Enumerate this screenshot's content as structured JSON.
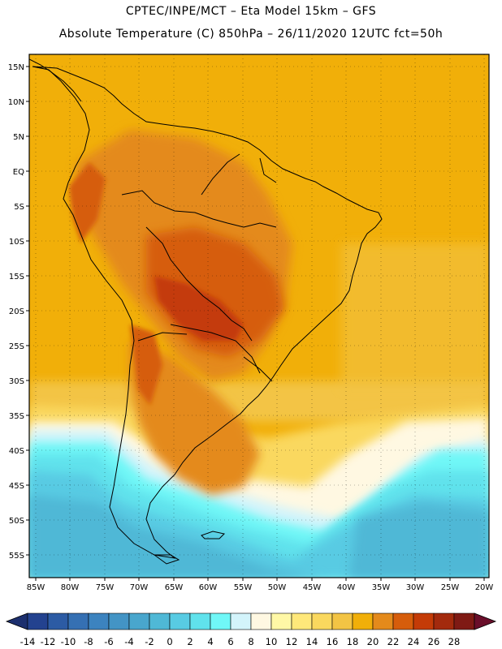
{
  "header": {
    "line1": "CPTEC/INPE/MCT –  Eta Model 15km – GFS",
    "line2": "Absolute Temperature (C) 850hPa – 26/11/2020 12UTC fct=50h"
  },
  "map": {
    "lat_labels": [
      "15N",
      "10N",
      "5N",
      "EQ",
      "5S",
      "10S",
      "15S",
      "20S",
      "25S",
      "30S",
      "35S",
      "40S",
      "45S",
      "50S",
      "55S"
    ],
    "lon_labels": [
      "85W",
      "80W",
      "75W",
      "70W",
      "65W",
      "60W",
      "55W",
      "50W",
      "45W",
      "40W",
      "35W",
      "30W",
      "25W",
      "20W"
    ]
  },
  "colorbar": {
    "labels": [
      "-14",
      "-12",
      "-10",
      "-8",
      "-6",
      "-4",
      "-2",
      "0",
      "2",
      "4",
      "6",
      "8",
      "10",
      "12",
      "14",
      "16",
      "18",
      "20",
      "22",
      "24",
      "26",
      "28"
    ],
    "colors": [
      "#23428f",
      "#2c5ba4",
      "#3570b3",
      "#3c83bf",
      "#4394c5",
      "#49a6cd",
      "#4fb8d6",
      "#58cbe3",
      "#60e2ec",
      "#70f7f7",
      "#d3f4fb",
      "#fff8e2",
      "#fff8a6",
      "#ffe87a",
      "#fad85e",
      "#f3c444",
      "#f1af09",
      "#e48a1b",
      "#d65d0b",
      "#c43b07",
      "#a32a0d",
      "#7f1a14"
    ],
    "arrow_low": "#1c2f6e",
    "arrow_high": "#6a0e2a"
  }
}
